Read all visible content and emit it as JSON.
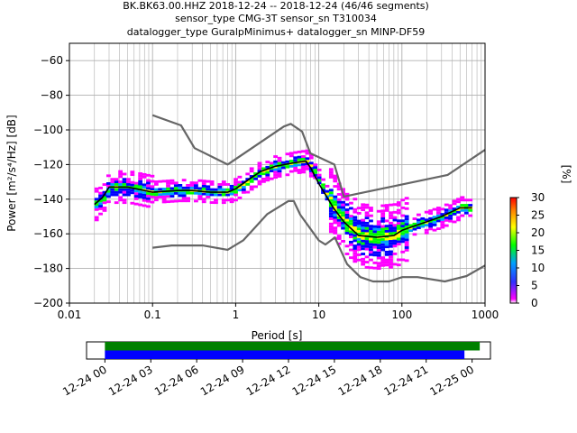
{
  "header": {
    "line1": "BK.BK63.00.HHZ   2018-12-24 -- 2018-12-24  (46/46 segments)",
    "line2": "sensor_type CMG-3T sensor_sn T310034",
    "line3": "datalogger_type GuralpMinimus+ datalogger_sn MINP-DF59"
  },
  "chart_data": [
    {
      "type": "heatmap",
      "title": "",
      "xlabel": "Period [s]",
      "ylabel": "Power [m²/s⁴/Hz] [dB]",
      "x_scale": "log",
      "xlim": [
        0.01,
        1000
      ],
      "ylim": [
        -200,
        -50
      ],
      "grid": true,
      "x_ticks": [
        0.01,
        0.1,
        1,
        10,
        100,
        1000
      ],
      "x_tick_labels": [
        "0.01",
        "0.1",
        "1",
        "10",
        "100",
        "1000"
      ],
      "y_ticks": [
        -200,
        -180,
        -160,
        -140,
        -120,
        -100,
        -80,
        -60
      ],
      "y_tick_labels": [
        "−200",
        "−180",
        "−160",
        "−140",
        "−120",
        "−100",
        "−80",
        "−60"
      ],
      "colorbar": {
        "label": "[%]",
        "range": [
          0,
          30
        ],
        "ticks": [
          0,
          5,
          10,
          15,
          20,
          25,
          30
        ],
        "tick_labels": [
          "0",
          "5",
          "10",
          "15",
          "20",
          "25",
          "30"
        ],
        "colormap": [
          "#ffffff",
          "#ff00ff",
          "#0000ff",
          "#00a0ff",
          "#00ff00",
          "#ffff00",
          "#ff8000",
          "#ff0000"
        ]
      },
      "series": [
        {
          "role": "mean PSD",
          "color": "#000000",
          "x": [
            0.02,
            0.025,
            0.03,
            0.05,
            0.08,
            0.1,
            0.2,
            0.3,
            0.5,
            0.8,
            1,
            1.5,
            2,
            3,
            5,
            7,
            8,
            10,
            15,
            20,
            30,
            50,
            80,
            100,
            150,
            200,
            300,
            500,
            700
          ],
          "y": [
            -143,
            -139,
            -133,
            -133,
            -135,
            -136,
            -135,
            -135,
            -136,
            -136,
            -134,
            -128,
            -124,
            -121,
            -119,
            -118,
            -122,
            -131,
            -145,
            -153,
            -161,
            -162,
            -161,
            -158,
            -155,
            -153,
            -150,
            -145,
            -145
          ]
        },
        {
          "role": "NHNM",
          "color": "#666666",
          "x": [
            0.1,
            0.22,
            0.32,
            0.8,
            3.8,
            4.6,
            6.3,
            7.9,
            15.4,
            20,
            354.8,
            1000
          ],
          "y": [
            -91.5,
            -97.4,
            -110.5,
            -120,
            -98,
            -96.5,
            -101,
            -113.5,
            -120,
            -138.5,
            -126,
            -111.5
          ]
        },
        {
          "role": "NLNM",
          "color": "#666666",
          "x": [
            0.1,
            0.17,
            0.4,
            0.8,
            1.24,
            2.4,
            4.3,
            5,
            6,
            10,
            12,
            15.6,
            21.9,
            31.6,
            45,
            70,
            101,
            154,
            328,
            600,
            1000
          ],
          "y": [
            -168,
            -166.7,
            -166.7,
            -169.2,
            -163.7,
            -148.6,
            -141.1,
            -141.1,
            -149,
            -163.8,
            -166.2,
            -162.1,
            -177.5,
            -185,
            -187.5,
            -187.5,
            -185,
            -185,
            -187.5,
            -184.4,
            -178.3
          ]
        }
      ]
    },
    {
      "type": "timeline",
      "x_tick_labels": [
        "12-24 00",
        "12-24 03",
        "12-24 06",
        "12-24 09",
        "12-24 12",
        "12-24 15",
        "12-24 18",
        "12-24 21",
        "12-25 00"
      ],
      "xlim_hours": [
        -1.2,
        25.2
      ],
      "bars": [
        {
          "name": "data coverage",
          "color": "#008000",
          "start_hours": 0,
          "end_hours": 24.5
        },
        {
          "name": "PSD segments used",
          "color": "#0000ff",
          "start_hours": 0,
          "end_hours": 23.5
        }
      ]
    }
  ]
}
